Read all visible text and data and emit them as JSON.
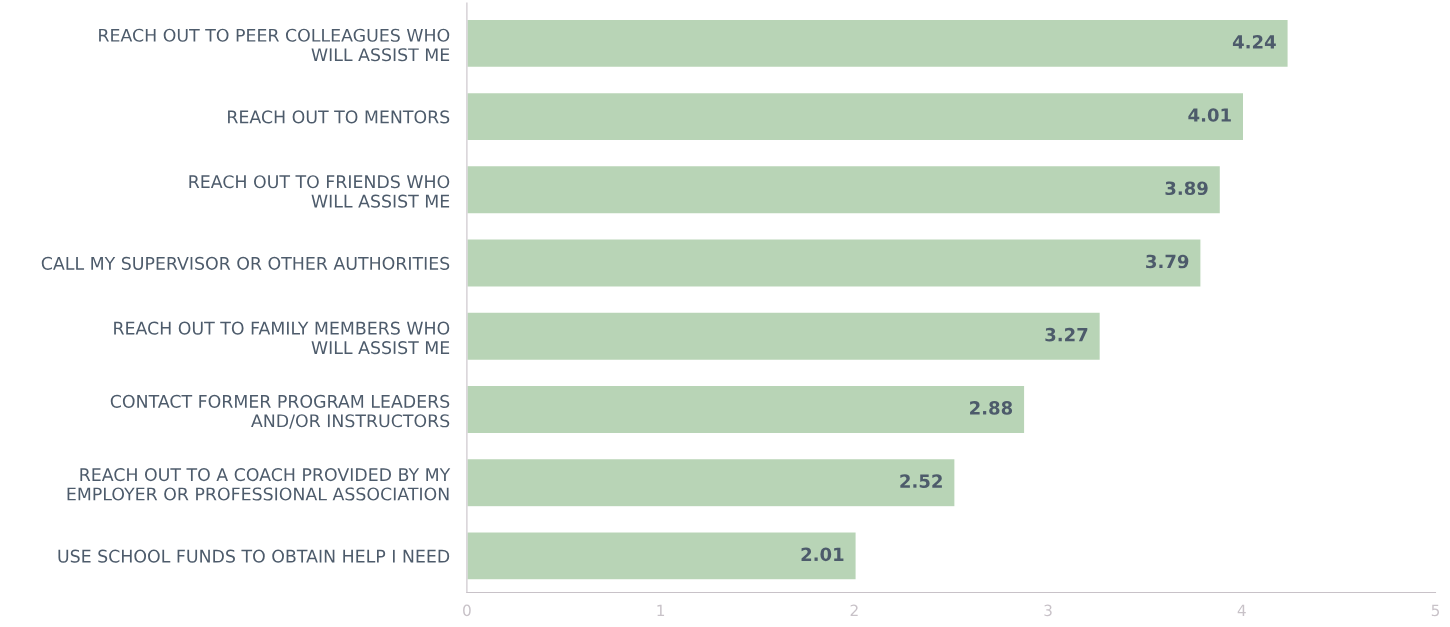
{
  "chart_data": {
    "type": "bar",
    "orientation": "horizontal",
    "categories": [
      "REACH OUT TO PEER COLLEAGUES WHO\nWILL ASSIST ME",
      "REACH OUT TO MENTORS",
      "REACH OUT TO FRIENDS WHO\nWILL ASSIST ME",
      "CALL MY SUPERVISOR OR OTHER AUTHORITIES",
      "REACH OUT TO FAMILY MEMBERS WHO\nWILL ASSIST ME",
      "CONTACT FORMER PROGRAM LEADERS\nAND/OR INSTRUCTORS",
      "REACH OUT TO A COACH PROVIDED BY MY\nEMPLOYER OR PROFESSIONAL ASSOCIATION",
      "USE SCHOOL FUNDS TO OBTAIN HELP I NEED"
    ],
    "values": [
      4.24,
      4.01,
      3.89,
      3.79,
      3.27,
      2.88,
      2.52,
      2.01
    ],
    "color": "#b8d4b6",
    "xlim": [
      0,
      5
    ],
    "xticks": [
      0,
      1,
      2,
      3,
      4,
      5
    ],
    "data_labels": true,
    "grid": false
  }
}
